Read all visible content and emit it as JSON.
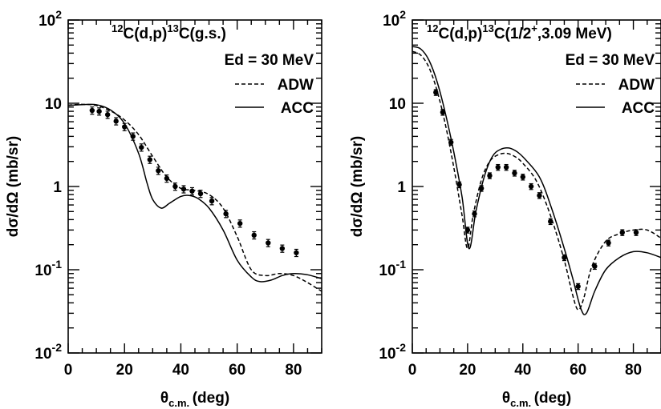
{
  "chart_data": [
    {
      "type": "line",
      "y_scale": "log",
      "xlim": [
        0,
        90
      ],
      "ylim": [
        0.01,
        100
      ],
      "xlabel": "θc.m. (deg)",
      "ylabel": "dσ/dΩ (mb/sr)",
      "x_ticks": [
        "0",
        "20",
        "40",
        "60",
        "80"
      ],
      "y_ticks": [
        {
          "value": 0.01,
          "base": "10",
          "exp": "-2"
        },
        {
          "value": 0.1,
          "base": "10",
          "exp": "-1"
        },
        {
          "value": 1,
          "base": "1",
          "exp": ""
        },
        {
          "value": 10,
          "base": "10",
          "exp": ""
        },
        {
          "value": 100,
          "base": "10",
          "exp": "2"
        }
      ],
      "title": {
        "pre": "12",
        "a": "C(d,p)",
        "mid": "13",
        "b": "C(g.s.)"
      },
      "energy": "Ed = 30 MeV",
      "legend": [
        {
          "label": "ADW",
          "style": "dashed"
        },
        {
          "label": "ACC",
          "style": "solid"
        }
      ],
      "points": [
        {
          "x": 8.5,
          "y": 8.2,
          "err": 0.1
        },
        {
          "x": 11,
          "y": 8.0,
          "err": 0.1
        },
        {
          "x": 14,
          "y": 7.3,
          "err": 0.1
        },
        {
          "x": 17,
          "y": 6.1,
          "err": 0.1
        },
        {
          "x": 20,
          "y": 5.2,
          "err": 0.1
        },
        {
          "x": 23,
          "y": 4.0,
          "err": 0.1
        },
        {
          "x": 26,
          "y": 2.95,
          "err": 0.1
        },
        {
          "x": 29,
          "y": 2.1,
          "err": 0.1
        },
        {
          "x": 32,
          "y": 1.55,
          "err": 0.1
        },
        {
          "x": 35,
          "y": 1.25,
          "err": 0.1
        },
        {
          "x": 38,
          "y": 1.0,
          "err": 0.1
        },
        {
          "x": 41,
          "y": 0.93,
          "err": 0.1
        },
        {
          "x": 44,
          "y": 0.88,
          "err": 0.1
        },
        {
          "x": 47,
          "y": 0.82,
          "err": 0.1
        },
        {
          "x": 51,
          "y": 0.67,
          "err": 0.1
        },
        {
          "x": 56,
          "y": 0.47,
          "err": 0.1
        },
        {
          "x": 61,
          "y": 0.36,
          "err": 0.1
        },
        {
          "x": 66,
          "y": 0.26,
          "err": 0.1
        },
        {
          "x": 71,
          "y": 0.21,
          "err": 0.1
        },
        {
          "x": 76,
          "y": 0.18,
          "err": 0.1
        },
        {
          "x": 81,
          "y": 0.16,
          "err": 0.1
        }
      ],
      "series": [
        {
          "name": "ADW",
          "style": "dashed",
          "x": [
            0,
            5,
            10,
            15,
            20,
            25,
            30,
            35,
            40,
            45,
            50,
            55,
            60,
            65,
            70,
            75,
            80,
            85,
            90
          ],
          "y": [
            9.5,
            9.7,
            9.4,
            8.1,
            6.3,
            4.2,
            2.3,
            1.3,
            0.95,
            0.9,
            0.8,
            0.55,
            0.25,
            0.1,
            0.085,
            0.09,
            0.085,
            0.07,
            0.055
          ]
        },
        {
          "name": "ACC",
          "style": "solid",
          "x": [
            0,
            5,
            10,
            15,
            20,
            25,
            28,
            30,
            33,
            36,
            40,
            43,
            46,
            50,
            55,
            60,
            65,
            68,
            72,
            76,
            80,
            85,
            90
          ],
          "y": [
            9.4,
            9.6,
            9.6,
            8.3,
            5.7,
            2.5,
            1.1,
            0.7,
            0.55,
            0.63,
            0.76,
            0.78,
            0.72,
            0.55,
            0.3,
            0.13,
            0.082,
            0.072,
            0.075,
            0.085,
            0.09,
            0.087,
            0.078
          ]
        }
      ]
    },
    {
      "type": "line",
      "y_scale": "log",
      "xlim": [
        0,
        90
      ],
      "ylim": [
        0.01,
        100
      ],
      "xlabel": "θc.m. (deg)",
      "ylabel": "dσ/dΩ (mb/sr)",
      "x_ticks": [
        "0",
        "20",
        "40",
        "60",
        "80"
      ],
      "y_ticks": [
        {
          "value": 0.01,
          "base": "10",
          "exp": "-2"
        },
        {
          "value": 0.1,
          "base": "10",
          "exp": "-1"
        },
        {
          "value": 1,
          "base": "1",
          "exp": ""
        },
        {
          "value": 10,
          "base": "10",
          "exp": ""
        },
        {
          "value": 100,
          "base": "10",
          "exp": "2"
        }
      ],
      "title": {
        "pre": "12",
        "a": "C(d,p)",
        "mid": "13",
        "b": "C(1/2",
        "sup": "+",
        "c": ",3.09 MeV)"
      },
      "energy": "Ed = 30 MeV",
      "legend": [
        {
          "label": "ADW",
          "style": "dashed"
        },
        {
          "label": "ACC",
          "style": "solid"
        }
      ],
      "points": [
        {
          "x": 8.5,
          "y": 13.5,
          "err": 0.08
        },
        {
          "x": 11,
          "y": 7.8,
          "err": 0.08
        },
        {
          "x": 14,
          "y": 3.4,
          "err": 0.08
        },
        {
          "x": 17,
          "y": 1.05,
          "err": 0.08
        },
        {
          "x": 20,
          "y": 0.3,
          "err": 0.08
        },
        {
          "x": 22.5,
          "y": 0.47,
          "err": 0.08
        },
        {
          "x": 25,
          "y": 0.95,
          "err": 0.08
        },
        {
          "x": 28,
          "y": 1.35,
          "err": 0.08
        },
        {
          "x": 31,
          "y": 1.7,
          "err": 0.08
        },
        {
          "x": 34,
          "y": 1.7,
          "err": 0.08
        },
        {
          "x": 37,
          "y": 1.45,
          "err": 0.08
        },
        {
          "x": 40,
          "y": 1.3,
          "err": 0.08
        },
        {
          "x": 43,
          "y": 1.0,
          "err": 0.08
        },
        {
          "x": 46,
          "y": 0.78,
          "err": 0.08
        },
        {
          "x": 50,
          "y": 0.38,
          "err": 0.08
        },
        {
          "x": 55,
          "y": 0.14,
          "err": 0.08
        },
        {
          "x": 60,
          "y": 0.063,
          "err": 0.08
        },
        {
          "x": 66,
          "y": 0.11,
          "err": 0.08
        },
        {
          "x": 71,
          "y": 0.21,
          "err": 0.08
        },
        {
          "x": 76,
          "y": 0.28,
          "err": 0.08
        },
        {
          "x": 81,
          "y": 0.28,
          "err": 0.08
        }
      ],
      "series": [
        {
          "name": "ADW",
          "style": "dashed",
          "x": [
            0,
            3,
            6,
            9,
            12,
            15,
            18,
            20,
            22,
            25,
            28,
            31,
            34,
            37,
            40,
            45,
            50,
            55,
            58,
            60,
            62,
            65,
            70,
            75,
            80,
            85,
            90
          ],
          "y": [
            42,
            38,
            27,
            14,
            5.5,
            1.7,
            0.45,
            0.18,
            0.45,
            1.2,
            2.0,
            2.4,
            2.5,
            2.3,
            1.9,
            1.15,
            0.45,
            0.13,
            0.05,
            0.033,
            0.045,
            0.11,
            0.22,
            0.27,
            0.3,
            0.3,
            0.24
          ]
        },
        {
          "name": "ACC",
          "style": "solid",
          "x": [
            0,
            3,
            6,
            9,
            12,
            15,
            18,
            20.5,
            23,
            26,
            29,
            32,
            35,
            38,
            41,
            46,
            50,
            55,
            58,
            61,
            63,
            66,
            70,
            75,
            80,
            85,
            90
          ],
          "y": [
            48,
            45,
            33,
            18,
            7.5,
            2.6,
            0.75,
            0.18,
            0.5,
            1.3,
            2.3,
            2.8,
            2.9,
            2.6,
            2.1,
            1.3,
            0.6,
            0.18,
            0.08,
            0.034,
            0.03,
            0.055,
            0.1,
            0.14,
            0.165,
            0.16,
            0.14
          ]
        }
      ]
    }
  ]
}
